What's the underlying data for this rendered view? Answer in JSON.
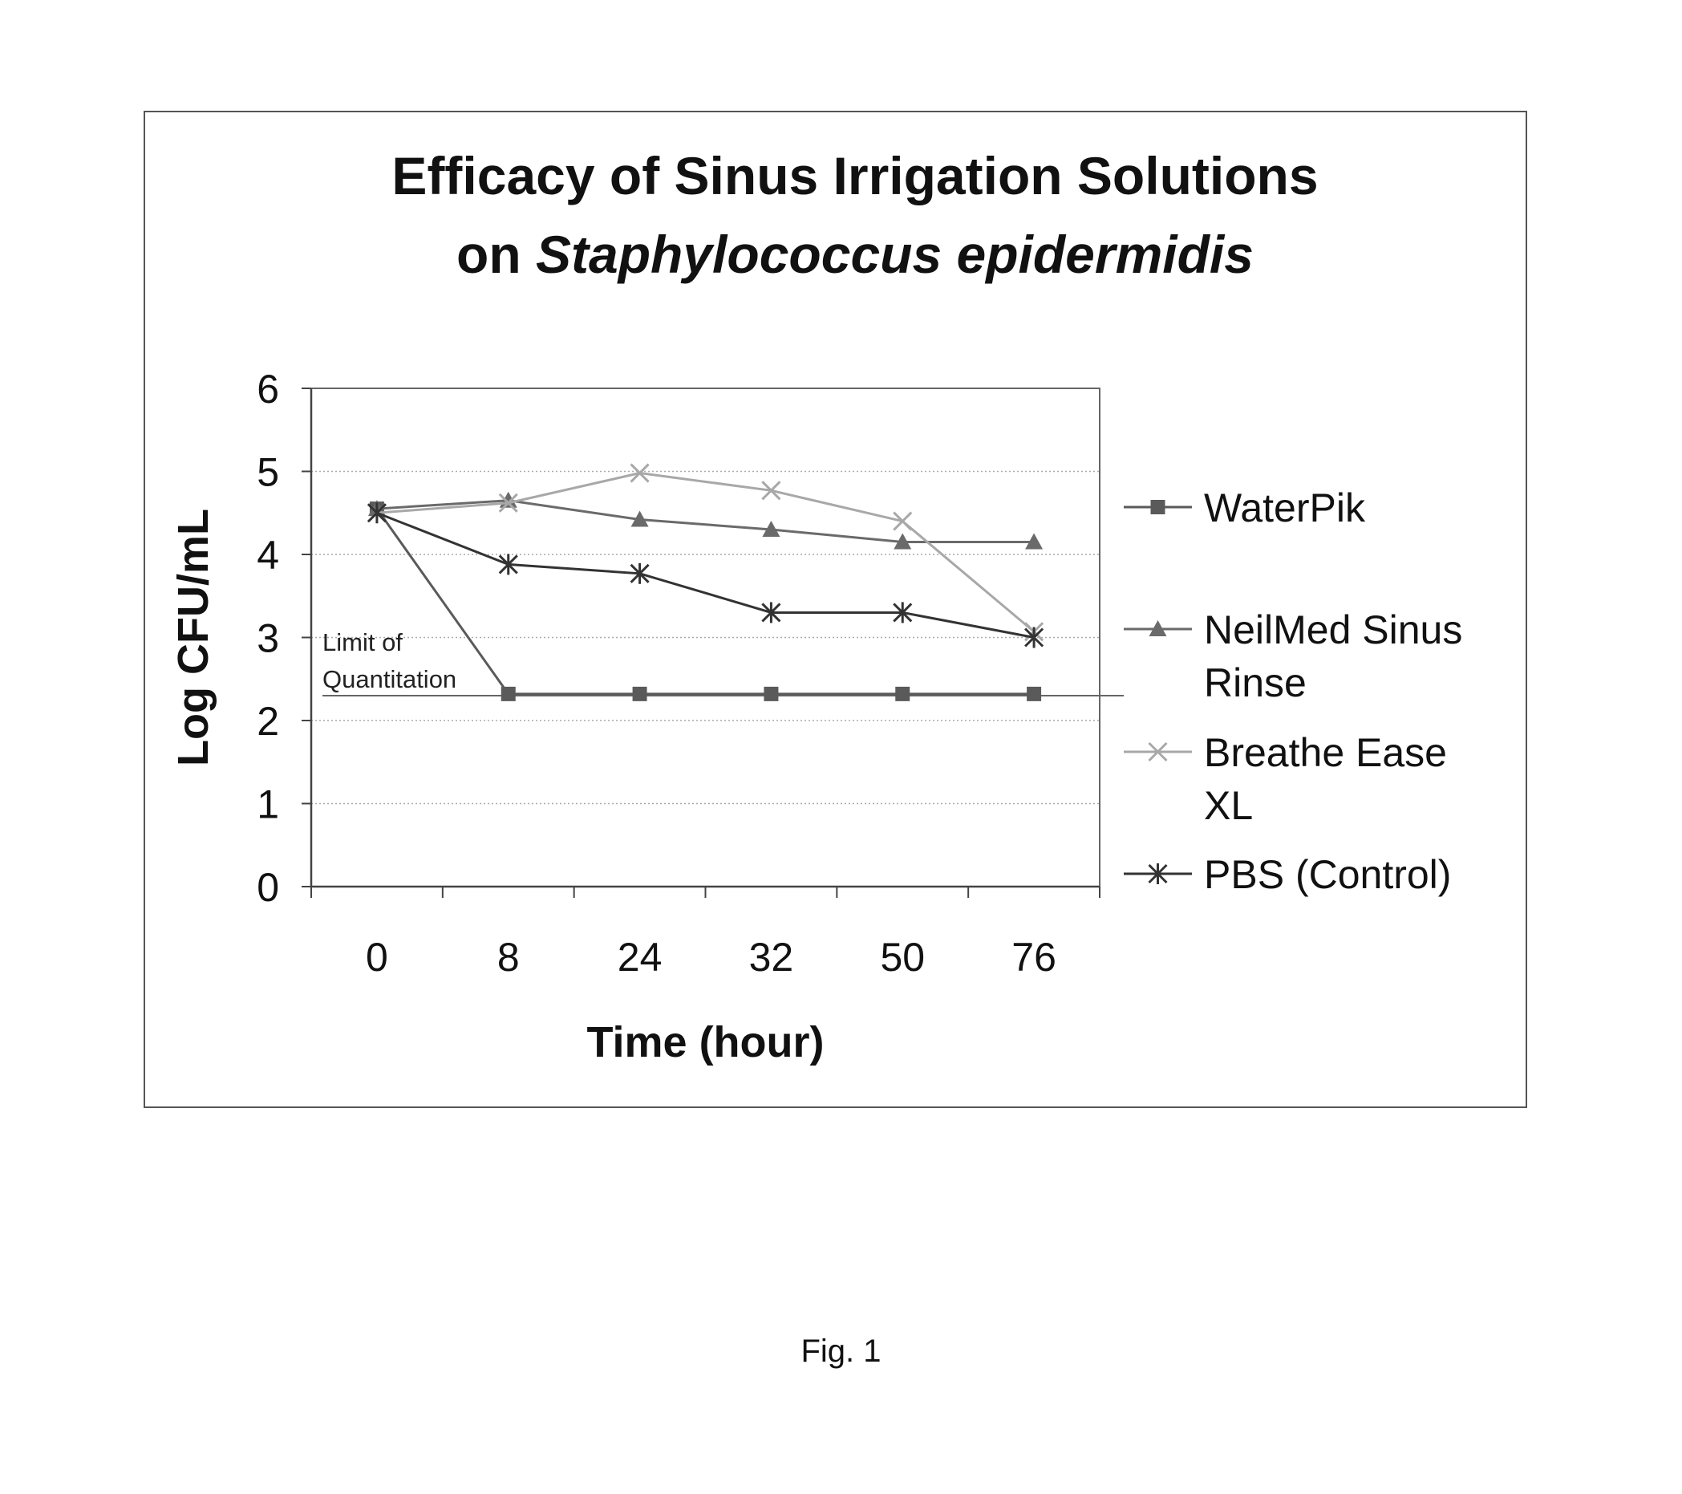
{
  "figure_caption": "Fig. 1",
  "chart_data": {
    "type": "line",
    "title_line1": "Efficacy of Sinus Irrigation Solutions",
    "title_line2_prefix": "on ",
    "title_line2_italic": "Staphylococcus epidermidis",
    "xlabel": "Time (hour)",
    "ylabel": "Log CFU/mL",
    "categories": [
      "0",
      "8",
      "24",
      "32",
      "50",
      "76"
    ],
    "ylim": [
      0,
      6
    ],
    "yticks": [
      "0",
      "1",
      "2",
      "3",
      "4",
      "5",
      "6"
    ],
    "grid": "horizontal dotted",
    "legend_position": "right",
    "series": [
      {
        "name": "WaterPik",
        "legend_lines": [
          "WaterPik"
        ],
        "marker": "square",
        "color": "#5a5a5a",
        "values": [
          4.55,
          2.32,
          2.32,
          2.32,
          2.32,
          2.32
        ]
      },
      {
        "name": "NeilMed Sinus Rinse",
        "legend_lines": [
          "NeilMed Sinus",
          "Rinse"
        ],
        "marker": "triangle",
        "color": "#6a6a6a",
        "values": [
          4.55,
          4.65,
          4.42,
          4.3,
          4.15,
          4.15
        ]
      },
      {
        "name": "Breathe Ease XL",
        "legend_lines": [
          "Breathe Ease",
          "XL"
        ],
        "marker": "x",
        "color": "#a8a8a8",
        "values": [
          4.5,
          4.62,
          4.98,
          4.77,
          4.4,
          3.07
        ]
      },
      {
        "name": "PBS (Control)",
        "legend_lines": [
          "PBS (Control)"
        ],
        "marker": "star",
        "color": "#333333",
        "values": [
          4.5,
          3.88,
          3.77,
          3.3,
          3.3,
          3.0
        ]
      }
    ],
    "annotation": {
      "lines": [
        "Limit of",
        "Quantitation"
      ],
      "value": 2.3
    }
  }
}
